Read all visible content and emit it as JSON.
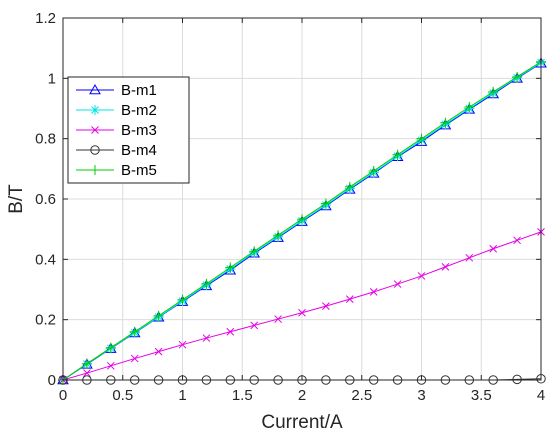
{
  "chart_data": {
    "type": "line",
    "xlabel": "Current/A",
    "ylabel": "B/T",
    "xlim": [
      0,
      4
    ],
    "ylim": [
      0,
      1.2
    ],
    "xticks": [
      "0",
      "0.5",
      "1",
      "1.5",
      "2",
      "2.5",
      "3",
      "3.5",
      "4"
    ],
    "yticks": [
      "0",
      "0.2",
      "0.4",
      "0.6",
      "0.8",
      "1",
      "1.2"
    ],
    "grid": true,
    "legend_position": "upper-left",
    "x": [
      0,
      0.2,
      0.4,
      0.6,
      0.8,
      1.0,
      1.2,
      1.4,
      1.6,
      1.8,
      2.0,
      2.2,
      2.4,
      2.6,
      2.8,
      3.0,
      3.2,
      3.4,
      3.6,
      3.8,
      4.0
    ],
    "series": [
      {
        "name": "B-m1",
        "color": "#0000ff",
        "marker": "triangle",
        "values": [
          0.0,
          0.052,
          0.104,
          0.156,
          0.208,
          0.26,
          0.312,
          0.364,
          0.42,
          0.472,
          0.525,
          0.577,
          0.632,
          0.685,
          0.74,
          0.79,
          0.845,
          0.897,
          0.948,
          1.0,
          1.05
        ]
      },
      {
        "name": "B-m2",
        "color": "#00e5e5",
        "marker": "asterisk",
        "values": [
          0.0,
          0.053,
          0.105,
          0.157,
          0.209,
          0.262,
          0.315,
          0.368,
          0.423,
          0.475,
          0.528,
          0.58,
          0.635,
          0.688,
          0.742,
          0.795,
          0.848,
          0.9,
          0.951,
          1.002,
          1.052
        ]
      },
      {
        "name": "B-m3",
        "color": "#e600e6",
        "marker": "x",
        "values": [
          0.0,
          0.023,
          0.047,
          0.071,
          0.094,
          0.117,
          0.139,
          0.16,
          0.181,
          0.202,
          0.223,
          0.245,
          0.268,
          0.292,
          0.318,
          0.345,
          0.375,
          0.405,
          0.435,
          0.463,
          0.491
        ]
      },
      {
        "name": "B-m4",
        "color": "#333333",
        "marker": "circle",
        "values": [
          0.0,
          0.0,
          0.0,
          0.0,
          0.0,
          0.0,
          0.0,
          0.0,
          0.0,
          0.0,
          0.0,
          0.0,
          0.0,
          0.0,
          0.0,
          0.0,
          0.0,
          0.0,
          0.0,
          0.002,
          0.004
        ]
      },
      {
        "name": "B-m5",
        "color": "#00cc00",
        "marker": "plus",
        "values": [
          0.0,
          0.054,
          0.107,
          0.16,
          0.213,
          0.266,
          0.319,
          0.373,
          0.427,
          0.48,
          0.533,
          0.585,
          0.64,
          0.693,
          0.747,
          0.8,
          0.853,
          0.905,
          0.955,
          1.005,
          1.055
        ]
      }
    ]
  }
}
